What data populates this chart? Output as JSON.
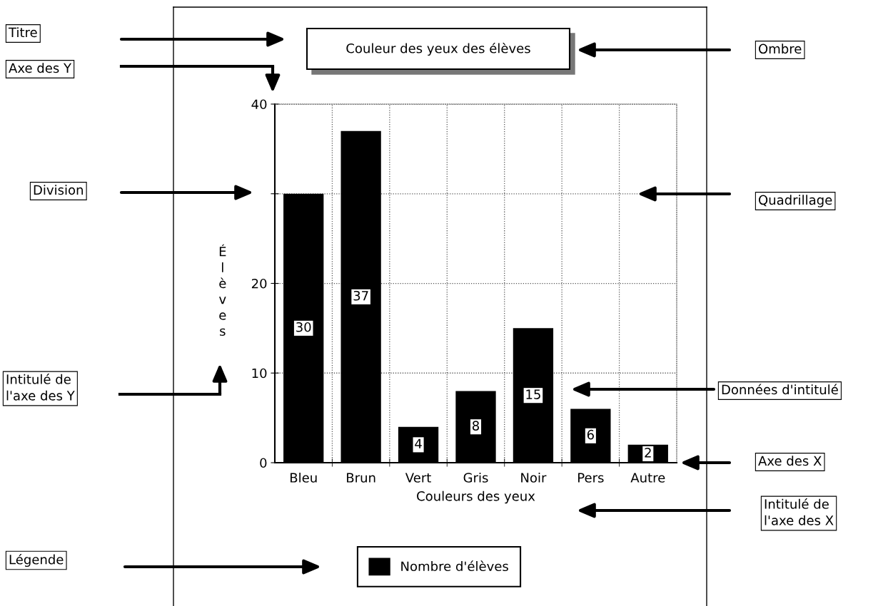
{
  "chart_data": {
    "type": "bar",
    "title": "Couleur des yeux des élèves",
    "xlabel": "Couleurs des yeux",
    "ylabel": "Élèves",
    "categories": [
      "Bleu",
      "Brun",
      "Vert",
      "Gris",
      "Noir",
      "Pers",
      "Autre"
    ],
    "series": [
      {
        "name": "Nombre d'élèves",
        "color": "#000000",
        "values": [
          30,
          37,
          4,
          8,
          15,
          6,
          2
        ]
      }
    ],
    "ylim": [
      0,
      40
    ],
    "yticks": [
      0,
      10,
      20,
      {
        "value": 30,
        "label": null
      },
      40
    ],
    "grid": true,
    "legend": "bottom",
    "data_labels": true,
    "annotations": [
      "Titre",
      "Axe des Y",
      "Division",
      "Intitulé de\nl'axe des Y",
      "Légende",
      "Ombre",
      "Quadrillage",
      "Données d'intitulé",
      "Axe des X",
      "Intitulé de\nl'axe des X"
    ]
  }
}
